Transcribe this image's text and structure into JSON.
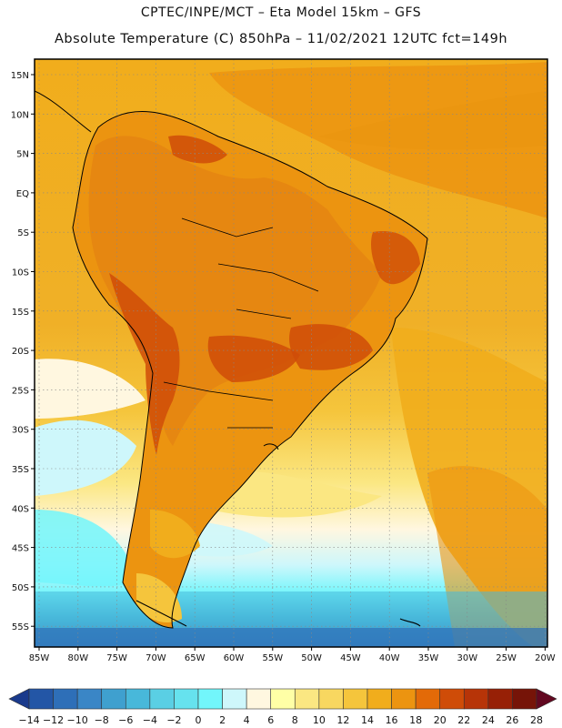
{
  "header": {
    "line1": "CPTEC/INPE/MCT –  Eta Model 15km – GFS",
    "line2": "Absolute Temperature (C) 850hPa – 11/02/2021 12UTC fct=149h"
  },
  "axes": {
    "lon_labels": [
      "85W",
      "80W",
      "75W",
      "70W",
      "65W",
      "60W",
      "55W",
      "50W",
      "45W",
      "40W",
      "35W",
      "30W",
      "25W",
      "20W"
    ],
    "lat_labels": [
      "15N",
      "10N",
      "5N",
      "EQ",
      "5S",
      "10S",
      "15S",
      "20S",
      "25S",
      "30S",
      "35S",
      "40S",
      "45S",
      "50S",
      "55S"
    ]
  },
  "colorbar": {
    "labels": [
      "-14",
      "-12",
      "-10",
      "-8",
      "-6",
      "-4",
      "-2",
      "0",
      "2",
      "4",
      "6",
      "8",
      "10",
      "12",
      "14",
      "16",
      "18",
      "20",
      "22",
      "24",
      "26",
      "28"
    ],
    "colors": [
      "#1a3a8c",
      "#2356a6",
      "#2e6fb8",
      "#3a86c6",
      "#3fa0cf",
      "#48b8da",
      "#5acfe4",
      "#66e2ee",
      "#72f6fb",
      "#cef7fb",
      "#fff7e0",
      "#ffffa6",
      "#fbe782",
      "#f8d760",
      "#f5c53c",
      "#f1ad1c",
      "#ec9410",
      "#e36a08",
      "#cf4c08",
      "#b73408",
      "#972006",
      "#761408",
      "#620820"
    ]
  },
  "colors": {
    "frame": "#000000",
    "grid": "#888888",
    "land_hot": "#d86a18",
    "ocean_warm": "#f1ad1c",
    "ocean_cool": "#cef7fb"
  }
}
